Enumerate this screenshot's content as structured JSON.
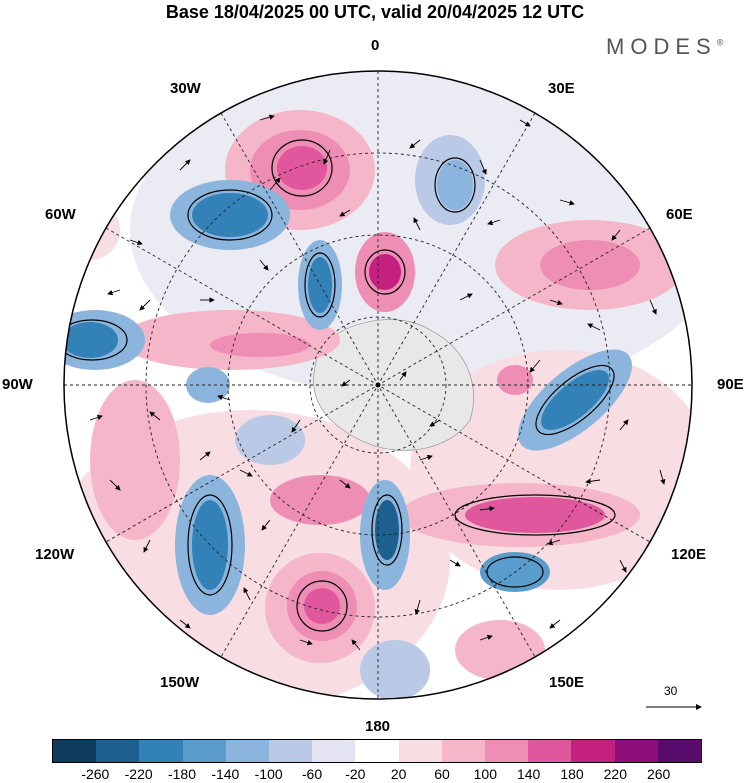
{
  "title": "Base 18/04/2025 00 UTC, valid 20/04/2025 12 UTC",
  "brand": "MODES",
  "brand_mark": "®",
  "lon_labels": {
    "top": "0",
    "top_right": "30E",
    "right_upper": "60E",
    "right": "90E",
    "right_lower": "120E",
    "bottom_right": "150E",
    "bottom": "180",
    "bottom_left": "150W",
    "left_lower": "120W",
    "left": "90W",
    "left_upper": "60W",
    "top_left": "30W"
  },
  "vector_reference": "30",
  "colorbar": {
    "colors": [
      "#0e3c5c",
      "#1d5f8e",
      "#3282b8",
      "#5a9ccc",
      "#8bb5dc",
      "#bac9e6",
      "#e3e3f1",
      "#ffffff",
      "#f8dde3",
      "#f4b6c8",
      "#ee8eb4",
      "#e0579e",
      "#c4207f",
      "#8e0f7a",
      "#5a0c6e"
    ],
    "labels": [
      "-260",
      "-220",
      "-180",
      "-140",
      "-100",
      "-60",
      "-20",
      "20",
      "60",
      "100",
      "140",
      "180",
      "220",
      "260"
    ]
  }
}
